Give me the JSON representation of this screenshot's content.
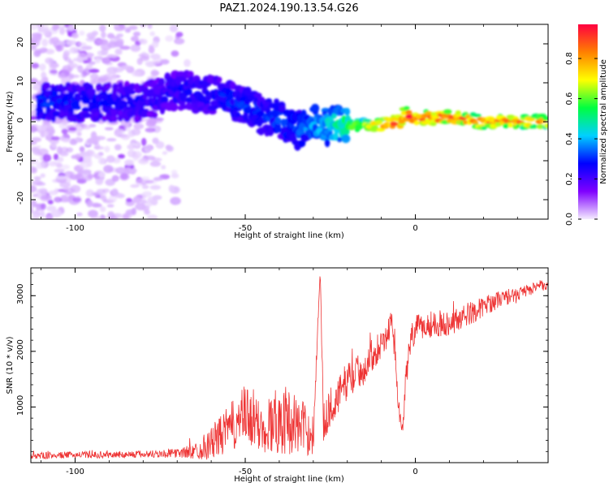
{
  "figure": {
    "title": "PAZ1.2024.190.13.54.G26"
  },
  "chart_data": [
    {
      "type": "heatmap",
      "xlabel": "Height of straight line (km)",
      "ylabel": "Frequency (Hz)",
      "xlim": [
        -113,
        39
      ],
      "ylim": [
        -25,
        25
      ],
      "x_ticks": [
        -100,
        -50,
        0
      ],
      "y_ticks": [
        -20,
        -10,
        0,
        10,
        20
      ],
      "colorbar": {
        "label": "Normalized spectral amplitude",
        "range": [
          0.0,
          0.97
        ],
        "ticks": [
          0.0,
          0.2,
          0.4,
          0.6,
          0.8
        ],
        "colormap": [
          "#f5ecff",
          "#7f00ff",
          "#0000ff",
          "#00d0ff",
          "#00ff40",
          "#ffff00",
          "#ff8000",
          "#ff0040"
        ]
      },
      "ridge": {
        "x": [
          -110,
          -100,
          -90,
          -80,
          -70,
          -60,
          -50,
          -45,
          -40,
          -35,
          -30,
          -25,
          -20,
          -15,
          -10,
          -5,
          -3,
          0,
          5,
          10,
          20,
          30,
          39
        ],
        "freq_hz": [
          5,
          5,
          5,
          5,
          8,
          7,
          4,
          2,
          1,
          -2,
          -1,
          -1,
          -1,
          -1,
          -1,
          0,
          2,
          1,
          1,
          1,
          0,
          0,
          0
        ],
        "peak_amplitude": [
          0.3,
          0.28,
          0.26,
          0.24,
          0.25,
          0.28,
          0.3,
          0.3,
          0.32,
          0.32,
          0.38,
          0.45,
          0.55,
          0.7,
          0.8,
          0.9,
          0.95,
          0.92,
          0.9,
          0.85,
          0.82,
          0.8,
          0.78
        ]
      },
      "background_noise_extent_km": [
        -113,
        -65
      ]
    },
    {
      "type": "line",
      "xlabel": "Height of straight line (km)",
      "ylabel": "SNR (10 * v/v)",
      "xlim": [
        -113,
        39
      ],
      "ylim": [
        0,
        3500
      ],
      "x_ticks": [
        -100,
        -50,
        0
      ],
      "y_ticks": [
        1000,
        2000,
        3000
      ],
      "series": [
        {
          "color": "#ee3333",
          "x": [
            -113,
            -100,
            -90,
            -80,
            -70,
            -65,
            -60,
            -55,
            -50,
            -45,
            -40,
            -35,
            -30,
            -28,
            -27,
            -25,
            -22,
            -20,
            -15,
            -12,
            -10,
            -8,
            -7,
            -6,
            -5,
            -4,
            -3,
            -2,
            -1,
            0,
            5,
            10,
            15,
            20,
            25,
            30,
            35,
            39
          ],
          "y_mid": [
            120,
            140,
            140,
            150,
            170,
            200,
            350,
            600,
            850,
            600,
            800,
            700,
            500,
            3450,
            700,
            1000,
            1250,
            1500,
            1700,
            2000,
            2150,
            2300,
            2700,
            1900,
            1100,
            500,
            1300,
            1900,
            2250,
            2400,
            2500,
            2500,
            2650,
            2800,
            2950,
            3000,
            3150,
            3200
          ],
          "noise": [
            60,
            60,
            60,
            70,
            80,
            140,
            300,
            420,
            550,
            450,
            650,
            550,
            380,
            50,
            350,
            350,
            350,
            350,
            300,
            300,
            250,
            250,
            200,
            250,
            200,
            150,
            250,
            280,
            280,
            250,
            250,
            220,
            220,
            180,
            150,
            130,
            110,
            90
          ]
        }
      ]
    }
  ]
}
